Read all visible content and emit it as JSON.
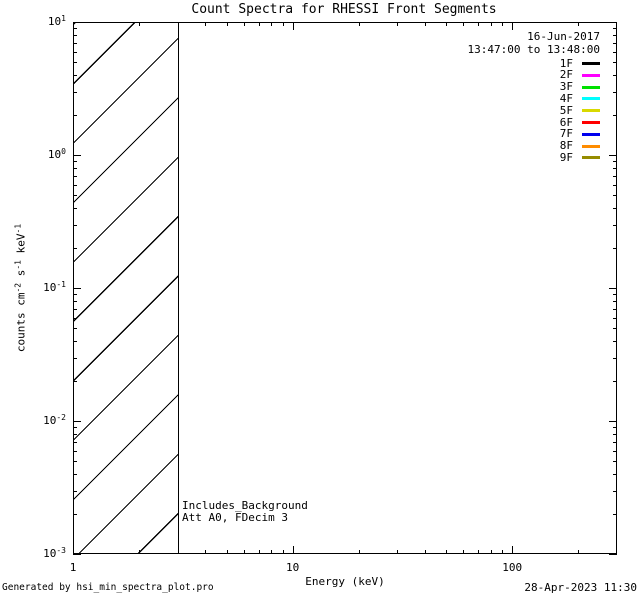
{
  "chart_data": {
    "type": "line",
    "title": "Count Spectra for RHESSI Front Segments",
    "xlabel": "Energy (keV)",
    "ylabel_parts": [
      {
        "text": "counts cm"
      },
      {
        "sup": "-2"
      },
      {
        "text": " s"
      },
      {
        "sup": "-1"
      },
      {
        "text": " keV"
      },
      {
        "sup": "-1"
      }
    ],
    "xscale": "log",
    "yscale": "log",
    "xlim": [
      1,
      300
    ],
    "ylim": [
      0.001,
      10
    ],
    "grid": false,
    "x_ticks": [
      {
        "value": 1,
        "label": "1"
      },
      {
        "value": 10,
        "label": "10"
      },
      {
        "value": 100,
        "label": "100"
      }
    ],
    "y_ticks": [
      {
        "value": 10,
        "base": "10",
        "exp": "1"
      },
      {
        "value": 1,
        "base": "10",
        "exp": "0"
      },
      {
        "value": 0.1,
        "base": "10",
        "exp": "-1"
      },
      {
        "value": 0.01,
        "base": "10",
        "exp": "-2"
      },
      {
        "value": 0.001,
        "base": "10",
        "exp": "-3"
      }
    ],
    "date_label": "16-Jun-2017",
    "time_range_label": "13:47:00 to 13:48:00",
    "legend": {
      "position": "top-right",
      "entries": [
        {
          "label": "1F",
          "color": "#000000"
        },
        {
          "label": "2F",
          "color": "#ff00ff"
        },
        {
          "label": "3F",
          "color": "#00e100"
        },
        {
          "label": "4F",
          "color": "#00ffff"
        },
        {
          "label": "5F",
          "color": "#d9d900"
        },
        {
          "label": "6F",
          "color": "#ff0000"
        },
        {
          "label": "7F",
          "color": "#0000ee"
        },
        {
          "label": "8F",
          "color": "#ff8c00"
        },
        {
          "label": "9F",
          "color": "#968c00"
        }
      ]
    },
    "annotations": [
      "Includes_Background",
      "Att A0, FDecim 3"
    ],
    "hatched_region": {
      "x_range": [
        1,
        3
      ],
      "style": "diagonal-hatch"
    },
    "series": []
  },
  "footer": {
    "left": "Generated by hsi_min_spectra_plot.pro",
    "right": "28-Apr-2023 11:30"
  }
}
